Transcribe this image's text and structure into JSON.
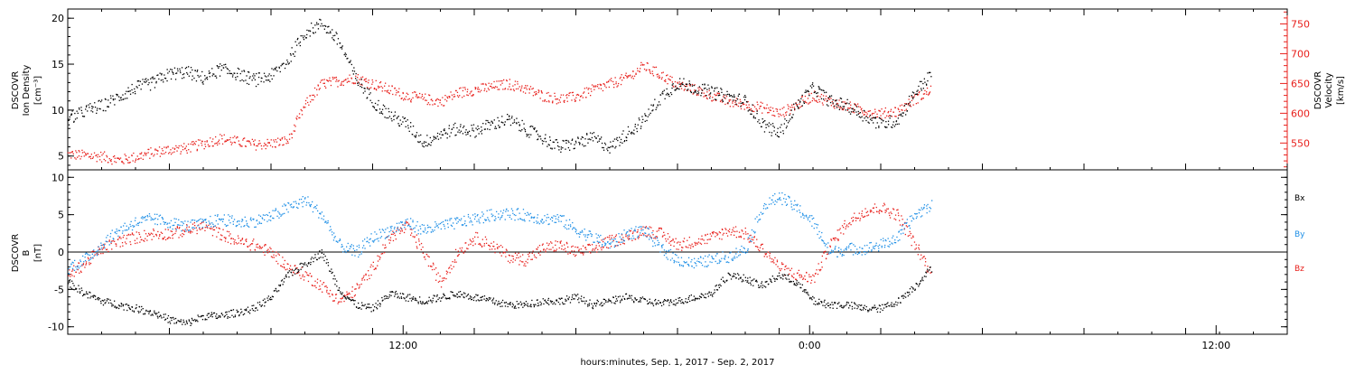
{
  "colors": {
    "black": "#000000",
    "red": "#e8201c",
    "blue": "#1e8fe6"
  },
  "xaxis": {
    "title": "hours:minutes, Sep.  1, 2017 - Sep.  2, 2017",
    "tick_labels": [
      "12:00",
      "0:00",
      "12:00"
    ],
    "range_hours": [
      0,
      36
    ]
  },
  "chart_data": [
    {
      "type": "scatter",
      "panel": "top",
      "ylabel_left": [
        "DSCOVR",
        "Ion Density",
        "[cm⁻³]"
      ],
      "ylabel_right": [
        "DSCOVR",
        "Velocity",
        "[km/s]"
      ],
      "left_axis": {
        "range": [
          3.5,
          21
        ],
        "ticks": [
          5,
          10,
          15,
          20
        ],
        "color": "#000000"
      },
      "right_axis": {
        "range": [
          505,
          775
        ],
        "ticks": [
          550,
          600,
          650,
          700,
          750
        ],
        "color": "#e8201c"
      },
      "series": [
        {
          "axis": "left",
          "color": "#000000",
          "x": [
            0,
            0.5,
            1,
            1.5,
            2,
            2.5,
            3,
            3.5,
            4,
            4.5,
            5,
            5.5,
            6,
            6.5,
            7,
            7.5,
            8,
            8.5,
            9,
            9.5,
            10,
            10.5,
            11,
            11.5,
            12,
            12.5,
            13,
            13.5,
            14,
            14.5,
            15,
            15.5,
            16,
            16.5,
            17,
            17.5,
            18,
            18.5,
            19,
            19.5,
            20,
            20.5,
            21,
            21.5,
            22,
            22.5,
            23,
            23.5,
            24,
            24.5,
            25,
            25.5,
            26,
            26.5,
            27,
            27.5,
            28,
            28.5,
            29,
            29.5,
            30,
            30.5,
            31,
            31.5,
            32,
            32.5,
            33,
            33.5,
            34,
            34.5,
            35,
            35.5,
            36
          ],
          "y": [
            9.0,
            10.0,
            10.5,
            11.5,
            12.5,
            13.0,
            14.0,
            14.2,
            13.5,
            14.5,
            14.0,
            13.3,
            13.8,
            15.5,
            18.5,
            19.5,
            17.5,
            13.5,
            11.0,
            9.5,
            8.5,
            6.5,
            7.5,
            8.0,
            7.8,
            8.5,
            9.0,
            8.0,
            7.0,
            6.0,
            6.5,
            7.0,
            6.0,
            7.5,
            9.0,
            11.5,
            13.0,
            12.5,
            12.0,
            11.5,
            11.0,
            8.5,
            7.5,
            10.5,
            12.5,
            11.0,
            10.5,
            9.5,
            8.5,
            9.0,
            12.0,
            14.0,
            null,
            null,
            null,
            null,
            null,
            null,
            null,
            null,
            null,
            null,
            null,
            null,
            null,
            null,
            null,
            null,
            null,
            null,
            null,
            null,
            null
          ]
        },
        {
          "axis": "right",
          "color": "#e8201c",
          "x": [
            0,
            0.5,
            1,
            1.5,
            2,
            2.5,
            3,
            3.5,
            4,
            4.5,
            5,
            5.5,
            6,
            6.5,
            7,
            7.5,
            8,
            8.5,
            9,
            9.5,
            10,
            10.5,
            11,
            11.5,
            12,
            12.5,
            13,
            13.5,
            14,
            14.5,
            15,
            15.5,
            16,
            16.5,
            17,
            17.5,
            18,
            18.5,
            19,
            19.5,
            20,
            20.5,
            21,
            21.5,
            22,
            22.5,
            23,
            23.5,
            24,
            24.5,
            25,
            25.5,
            26,
            26.5,
            27,
            27.5,
            28,
            28.5,
            29,
            29.5,
            30,
            30.5,
            31,
            31.5,
            32,
            32.5,
            33,
            33.5,
            34,
            34.5,
            35,
            35.5,
            36
          ],
          "y": [
            532,
            530,
            528,
            522,
            527,
            535,
            540,
            542,
            550,
            558,
            553,
            548,
            550,
            555,
            615,
            650,
            655,
            660,
            650,
            640,
            630,
            625,
            620,
            635,
            640,
            645,
            650,
            642,
            630,
            625,
            628,
            640,
            650,
            660,
            680,
            665,
            648,
            640,
            630,
            620,
            615,
            610,
            600,
            615,
            630,
            620,
            612,
            605,
            600,
            605,
            625,
            640,
            null,
            null,
            null,
            null,
            null,
            null,
            null,
            null,
            null,
            null,
            null,
            null,
            null,
            null,
            null,
            null,
            null,
            null,
            null,
            null,
            null
          ]
        }
      ]
    },
    {
      "type": "scatter",
      "panel": "bottom",
      "ylabel_left": [
        "DSCOVR",
        "B",
        "[nT]"
      ],
      "left_axis": {
        "range": [
          -11,
          11
        ],
        "ticks": [
          -10,
          -5,
          0,
          5,
          10
        ]
      },
      "zero_line": true,
      "legend": [
        "Bx",
        "By",
        "Bz"
      ],
      "series": [
        {
          "name": "Bx",
          "color": "#000000",
          "x": [
            0,
            0.5,
            1,
            1.5,
            2,
            2.5,
            3,
            3.5,
            4,
            4.5,
            5,
            5.5,
            6,
            6.5,
            7,
            7.5,
            8,
            8.5,
            9,
            9.5,
            10,
            10.5,
            11,
            11.5,
            12,
            12.5,
            13,
            13.5,
            14,
            14.5,
            15,
            15.5,
            16,
            16.5,
            17,
            17.5,
            18,
            18.5,
            19,
            19.5,
            20,
            20.5,
            21,
            21.5,
            22,
            22.5,
            23,
            23.5,
            24,
            24.5,
            25,
            25.5,
            26,
            26.5,
            27,
            27.5,
            28,
            28.5,
            29,
            29.5,
            30,
            30.5,
            31,
            31.5,
            32,
            32.5,
            33,
            33.5,
            34,
            34.5,
            35,
            35.5,
            36
          ],
          "y": [
            -4.0,
            -5.5,
            -6.5,
            -7.0,
            -7.5,
            -8.0,
            -9.0,
            -9.5,
            -8.5,
            -8.5,
            -8.0,
            -7.5,
            -6.0,
            -3.0,
            -1.5,
            0.0,
            -5.0,
            -7.0,
            -7.5,
            -5.5,
            -6.0,
            -6.5,
            -6.0,
            -5.5,
            -6.0,
            -6.5,
            -7.0,
            -7.0,
            -6.5,
            -6.5,
            -6.0,
            -7.0,
            -6.5,
            -6.0,
            -6.5,
            -6.8,
            -6.5,
            -6.0,
            -5.5,
            -3.0,
            -3.5,
            -4.5,
            -3.0,
            -4.0,
            -6.5,
            -7.0,
            -7.0,
            -7.5,
            -7.5,
            -6.5,
            -4.5,
            -2.0,
            null,
            null,
            null,
            null,
            null,
            null,
            null,
            null,
            null,
            null,
            null,
            null,
            null,
            null,
            null,
            null,
            null,
            null,
            null,
            null,
            null
          ]
        },
        {
          "name": "By",
          "color": "#1e8fe6",
          "x": [
            0,
            0.5,
            1,
            1.5,
            2,
            2.5,
            3,
            3.5,
            4,
            4.5,
            5,
            5.5,
            6,
            6.5,
            7,
            7.5,
            8,
            8.5,
            9,
            9.5,
            10,
            10.5,
            11,
            11.5,
            12,
            12.5,
            13,
            13.5,
            14,
            14.5,
            15,
            15.5,
            16,
            16.5,
            17,
            17.5,
            18,
            18.5,
            19,
            19.5,
            20,
            20.5,
            21,
            21.5,
            22,
            22.5,
            23,
            23.5,
            24,
            24.5,
            25,
            25.5,
            26,
            26.5,
            27,
            27.5,
            28,
            28.5,
            29,
            29.5,
            30,
            30.5,
            31,
            31.5,
            32,
            32.5,
            33,
            33.5,
            34,
            34.5,
            35,
            35.5,
            36
          ],
          "y": [
            -2.0,
            -1.0,
            1.0,
            3.0,
            4.0,
            4.5,
            4.0,
            3.5,
            3.8,
            4.5,
            4.0,
            4.2,
            4.8,
            6.0,
            7.0,
            5.0,
            1.0,
            0.0,
            2.0,
            3.0,
            4.0,
            3.0,
            3.5,
            4.0,
            4.5,
            5.0,
            5.2,
            5.0,
            4.5,
            4.5,
            3.0,
            2.0,
            1.0,
            2.5,
            3.0,
            0.5,
            -1.0,
            -1.5,
            -1.0,
            -0.5,
            0.5,
            6.0,
            7.5,
            6.0,
            4.0,
            0.0,
            0.5,
            0.5,
            1.0,
            2.0,
            5.0,
            6.5,
            null,
            null,
            null,
            null,
            null,
            null,
            null,
            null,
            null,
            null,
            null,
            null,
            null,
            null,
            null,
            null,
            null,
            null,
            null,
            null,
            null
          ]
        },
        {
          "name": "Bz",
          "color": "#e8201c",
          "x": [
            0,
            0.5,
            1,
            1.5,
            2,
            2.5,
            3,
            3.5,
            4,
            4.5,
            5,
            5.5,
            6,
            6.5,
            7,
            7.5,
            8,
            8.5,
            9,
            9.5,
            10,
            10.5,
            11,
            11.5,
            12,
            12.5,
            13,
            13.5,
            14,
            14.5,
            15,
            15.5,
            16,
            16.5,
            17,
            17.5,
            18,
            18.5,
            19,
            19.5,
            20,
            20.5,
            21,
            21.5,
            22,
            22.5,
            23,
            23.5,
            24,
            24.5,
            25,
            25.5,
            26,
            26.5,
            27,
            27.5,
            28,
            28.5,
            29,
            29.5,
            30,
            30.5,
            31,
            31.5,
            32,
            32.5,
            33,
            33.5,
            34,
            34.5,
            35,
            35.5,
            36
          ],
          "y": [
            -3.0,
            -1.5,
            0.5,
            1.5,
            2.0,
            2.5,
            2.5,
            3.0,
            3.5,
            2.5,
            1.5,
            1.0,
            0.0,
            -2.0,
            -3.0,
            -4.5,
            -6.5,
            -5.0,
            -2.0,
            2.0,
            3.5,
            0.0,
            -4.0,
            0.0,
            2.0,
            1.0,
            -0.5,
            -1.0,
            0.5,
            1.0,
            0.0,
            0.5,
            1.5,
            2.0,
            3.0,
            2.5,
            1.0,
            1.5,
            2.0,
            3.0,
            2.5,
            0.5,
            -2.0,
            -3.0,
            -3.5,
            1.0,
            4.0,
            5.5,
            6.0,
            5.0,
            1.0,
            -3.0,
            null,
            null,
            null,
            null,
            null,
            null,
            null,
            null,
            null,
            null,
            null,
            null,
            null,
            null,
            null,
            null,
            null,
            null,
            null,
            null,
            null
          ]
        }
      ]
    }
  ]
}
